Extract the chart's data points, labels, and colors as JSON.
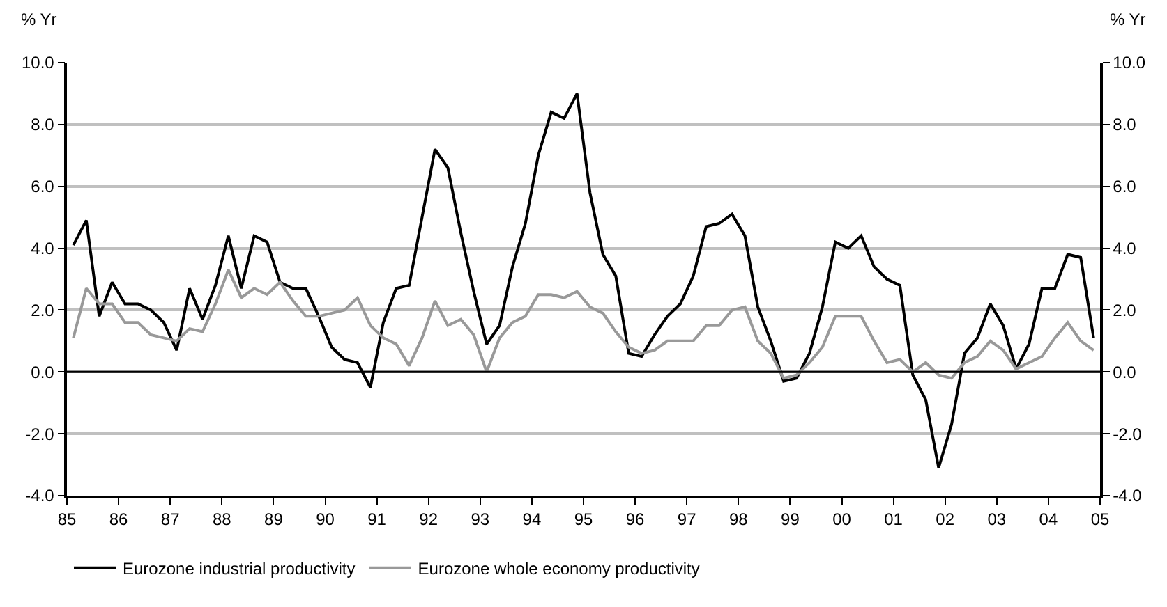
{
  "chart_data": {
    "type": "line",
    "x": [
      1985.125,
      1985.375,
      1985.625,
      1985.875,
      1986.125,
      1986.375,
      1986.625,
      1986.875,
      1987.125,
      1987.375,
      1987.625,
      1987.875,
      1988.125,
      1988.375,
      1988.625,
      1988.875,
      1989.125,
      1989.375,
      1989.625,
      1989.875,
      1990.125,
      1990.375,
      1990.625,
      1990.875,
      1991.125,
      1991.375,
      1991.625,
      1991.875,
      1992.125,
      1992.375,
      1992.625,
      1992.875,
      1993.125,
      1993.375,
      1993.625,
      1993.875,
      1994.125,
      1994.375,
      1994.625,
      1994.875,
      1995.125,
      1995.375,
      1995.625,
      1995.875,
      1996.125,
      1996.375,
      1996.625,
      1996.875,
      1997.125,
      1997.375,
      1997.625,
      1997.875,
      1998.125,
      1998.375,
      1998.625,
      1998.875,
      1999.125,
      1999.375,
      1999.625,
      1999.875,
      2000.125,
      2000.375,
      2000.625,
      2000.875,
      2001.125,
      2001.375,
      2001.625,
      2001.875,
      2002.125,
      2002.375,
      2002.625,
      2002.875,
      2003.125,
      2003.375,
      2003.625,
      2003.875,
      2004.125,
      2004.375,
      2004.625,
      2004.875
    ],
    "ylabel": "% Yr",
    "y2label": "% Yr",
    "xlim": [
      1985,
      2005
    ],
    "xticks": [
      {
        "value": 1985,
        "label": "85"
      },
      {
        "value": 1986,
        "label": "86"
      },
      {
        "value": 1987,
        "label": "87"
      },
      {
        "value": 1988,
        "label": "88"
      },
      {
        "value": 1989,
        "label": "89"
      },
      {
        "value": 1990,
        "label": "90"
      },
      {
        "value": 1991,
        "label": "91"
      },
      {
        "value": 1992,
        "label": "92"
      },
      {
        "value": 1993,
        "label": "93"
      },
      {
        "value": 1994,
        "label": "94"
      },
      {
        "value": 1995,
        "label": "95"
      },
      {
        "value": 1996,
        "label": "96"
      },
      {
        "value": 1997,
        "label": "97"
      },
      {
        "value": 1998,
        "label": "98"
      },
      {
        "value": 1999,
        "label": "99"
      },
      {
        "value": 2000,
        "label": "00"
      },
      {
        "value": 2001,
        "label": "01"
      },
      {
        "value": 2002,
        "label": "02"
      },
      {
        "value": 2003,
        "label": "03"
      },
      {
        "value": 2004,
        "label": "04"
      },
      {
        "value": 2005,
        "label": "05"
      }
    ],
    "ylim": [
      -4,
      10
    ],
    "yticks": [
      {
        "value": -4,
        "label": "-4.0"
      },
      {
        "value": -2,
        "label": "-2.0"
      },
      {
        "value": 0,
        "label": "0.0"
      },
      {
        "value": 2,
        "label": "2.0"
      },
      {
        "value": 4,
        "label": "4.0"
      },
      {
        "value": 6,
        "label": "6.0"
      },
      {
        "value": 8,
        "label": "8.0"
      },
      {
        "value": 10,
        "label": "10.0"
      }
    ],
    "y2lim": [
      -4,
      10
    ],
    "y2ticks": [
      {
        "value": -4,
        "label": "-4.0"
      },
      {
        "value": -2,
        "label": "-2.0"
      },
      {
        "value": 0,
        "label": "0.0"
      },
      {
        "value": 2,
        "label": "2.0"
      },
      {
        "value": 4,
        "label": "4.0"
      },
      {
        "value": 6,
        "label": "6.0"
      },
      {
        "value": 8,
        "label": "8.0"
      },
      {
        "value": 10,
        "label": "10.0"
      }
    ],
    "grid": "y",
    "legend": "bottom",
    "marker": "none",
    "line_style": "solid",
    "ref_lines": [
      {
        "axis": "y",
        "value": 0,
        "color": "#000000"
      }
    ],
    "series": [
      {
        "name": "Eurozone industrial productivity",
        "color": "#000000",
        "values": [
          4.1,
          4.9,
          1.8,
          2.9,
          2.2,
          2.2,
          2.0,
          1.6,
          0.7,
          2.7,
          1.7,
          2.8,
          4.4,
          2.7,
          4.4,
          4.2,
          2.9,
          2.7,
          2.7,
          1.8,
          0.8,
          0.4,
          0.3,
          -0.5,
          1.6,
          2.7,
          2.8,
          5.0,
          7.2,
          6.6,
          4.5,
          2.6,
          0.9,
          1.5,
          3.4,
          4.8,
          7.0,
          8.4,
          8.2,
          9.0,
          5.8,
          3.8,
          3.1,
          0.6,
          0.5,
          1.2,
          1.8,
          2.2,
          3.1,
          4.7,
          4.8,
          5.1,
          4.4,
          2.1,
          1.0,
          -0.3,
          -0.2,
          0.6,
          2.1,
          4.2,
          4.0,
          4.4,
          3.4,
          3.0,
          2.8,
          -0.1,
          -0.9,
          -3.1,
          -1.7,
          0.6,
          1.1,
          2.2,
          1.5,
          0.1,
          0.9,
          2.7,
          2.7,
          3.8,
          3.7,
          1.1
        ]
      },
      {
        "name": "Eurozone whole economy productivity",
        "color": "#999999",
        "values": [
          1.1,
          2.7,
          2.2,
          2.2,
          1.6,
          1.6,
          1.2,
          1.1,
          1.0,
          1.4,
          1.3,
          2.2,
          3.3,
          2.4,
          2.7,
          2.5,
          2.9,
          2.3,
          1.8,
          1.8,
          1.9,
          2.0,
          2.4,
          1.5,
          1.1,
          0.9,
          0.2,
          1.1,
          2.3,
          1.5,
          1.7,
          1.2,
          0.0,
          1.1,
          1.6,
          1.8,
          2.5,
          2.5,
          2.4,
          2.6,
          2.1,
          1.9,
          1.3,
          0.8,
          0.6,
          0.7,
          1.0,
          1.0,
          1.0,
          1.5,
          1.5,
          2.0,
          2.1,
          1.0,
          0.6,
          -0.2,
          -0.1,
          0.3,
          0.8,
          1.8,
          1.8,
          1.8,
          1.0,
          0.3,
          0.4,
          0.0,
          0.3,
          -0.1,
          -0.2,
          0.3,
          0.5,
          1.0,
          0.7,
          0.1,
          0.3,
          0.5,
          1.1,
          1.6,
          1.0,
          0.7
        ]
      }
    ]
  }
}
